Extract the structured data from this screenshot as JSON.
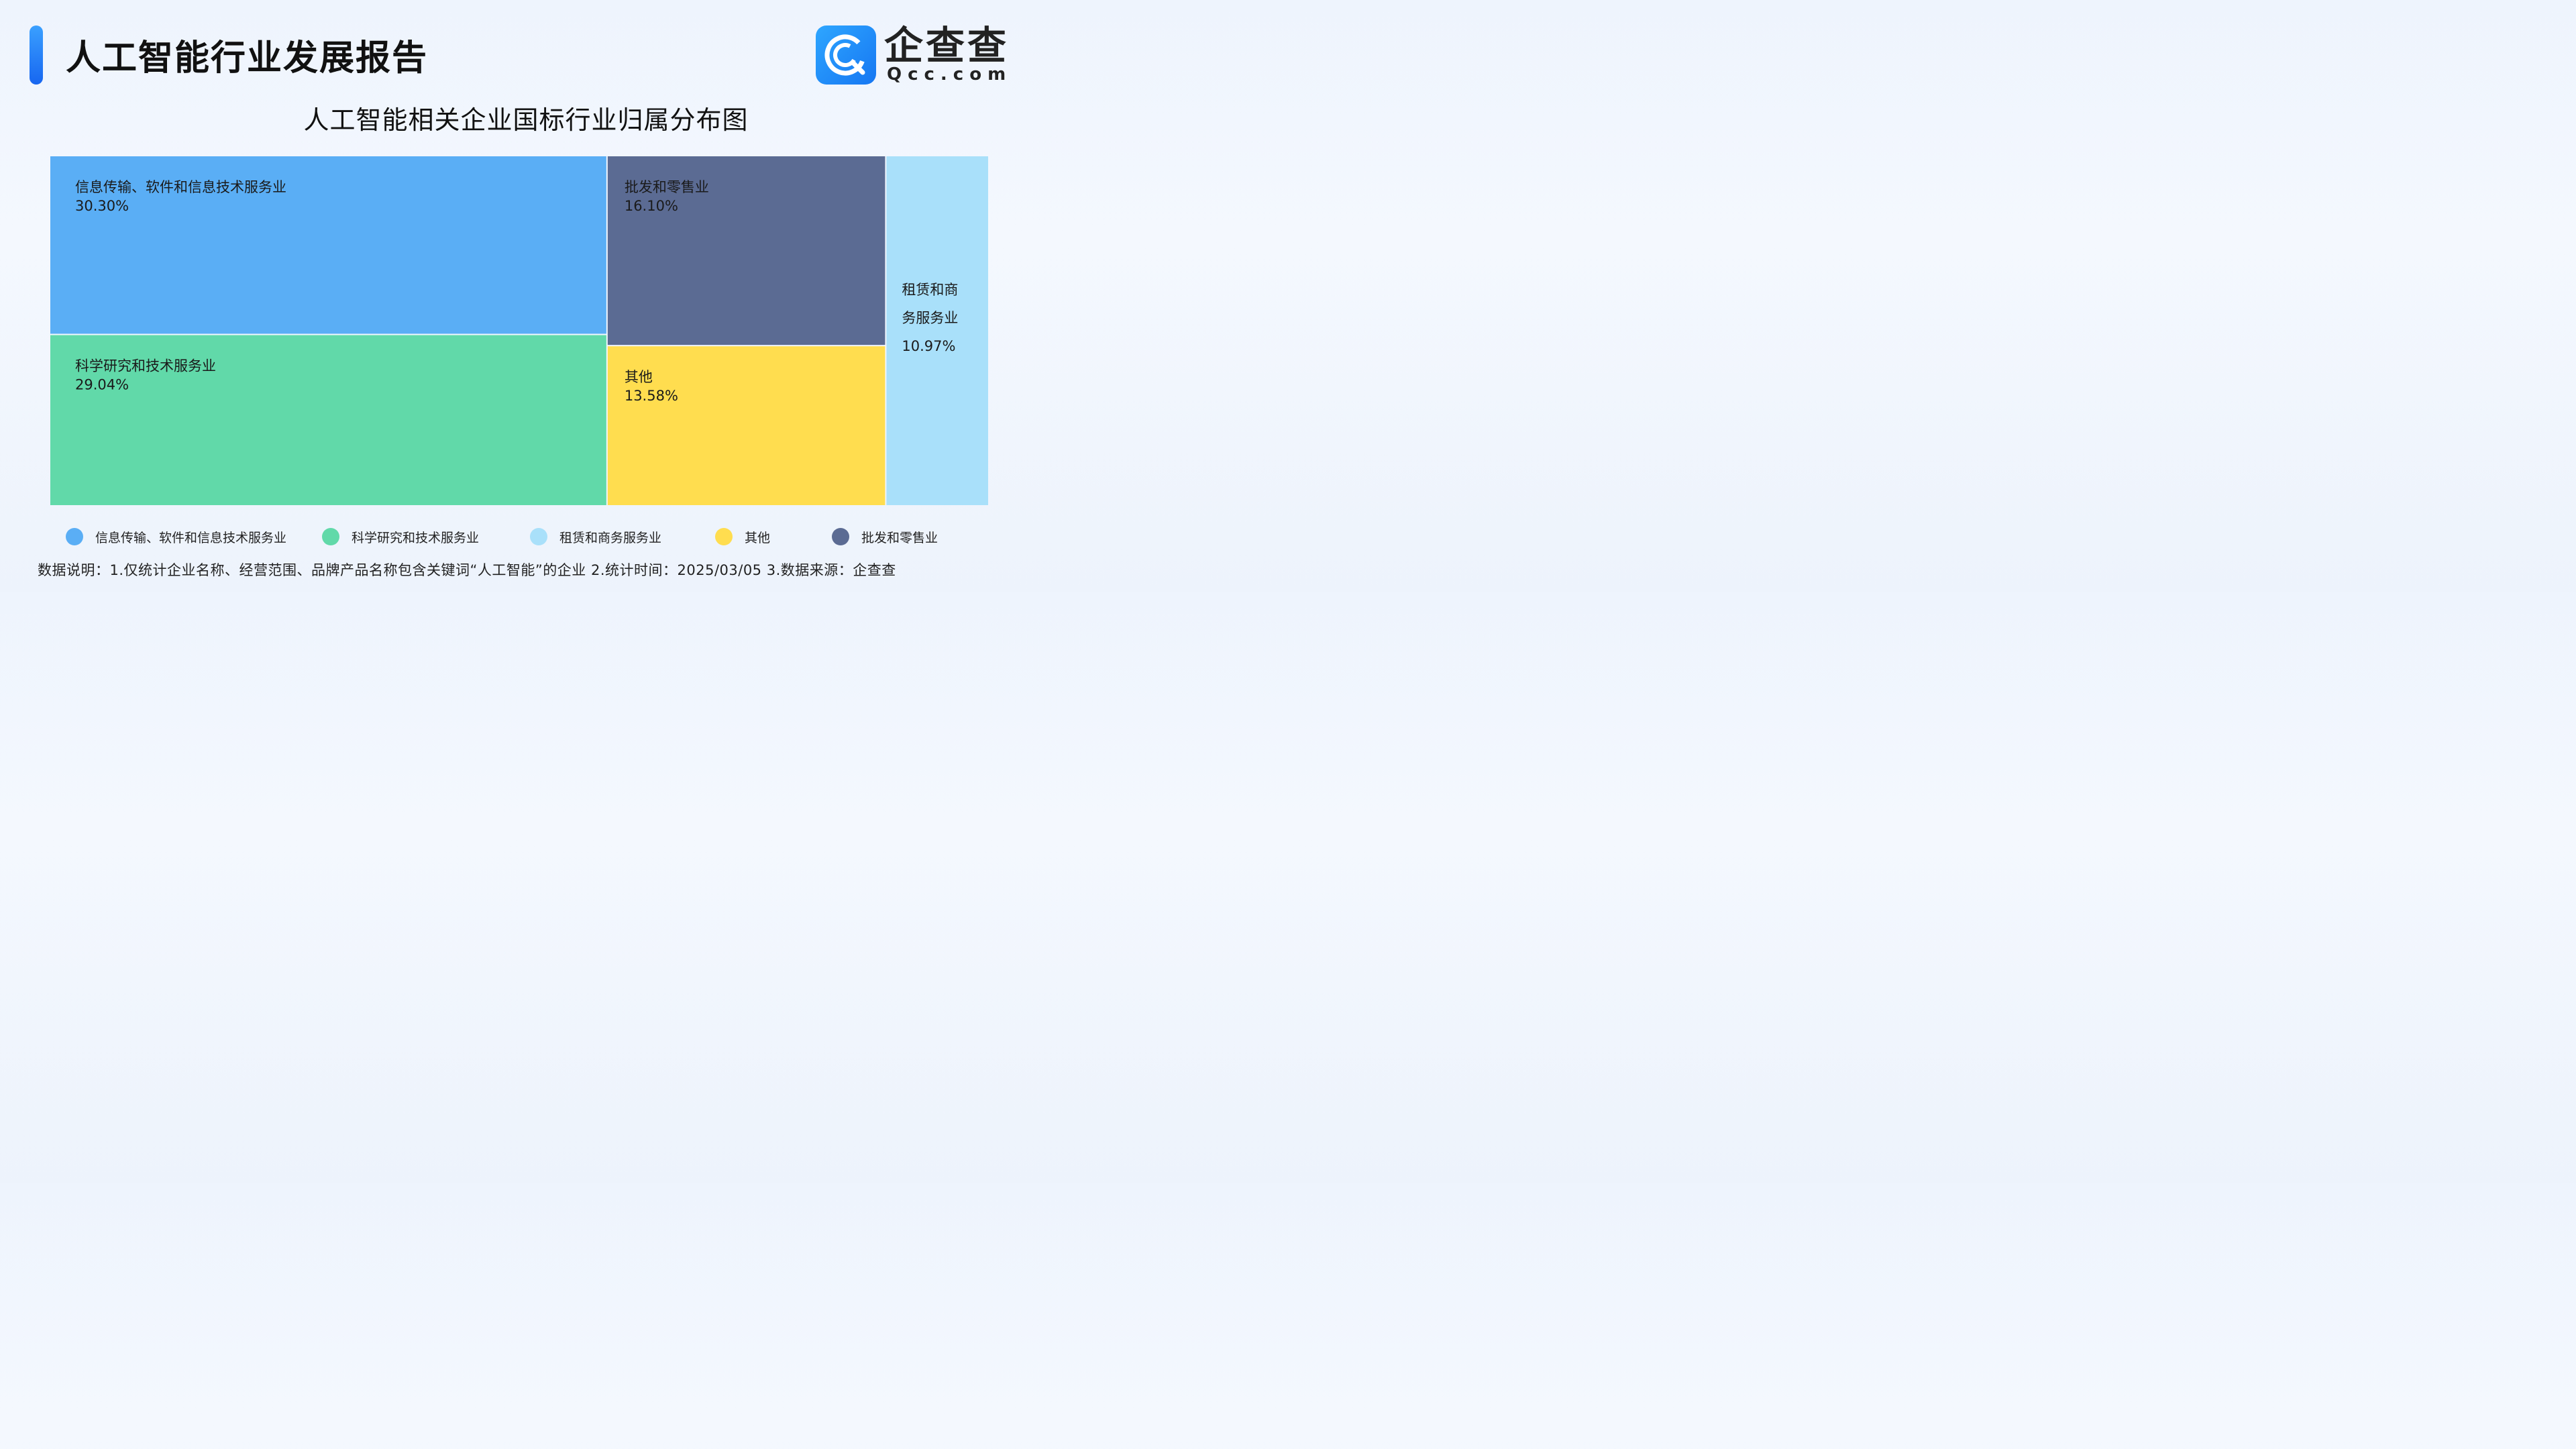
{
  "header": {
    "title": "人工智能行业发展报告",
    "logo_cn": "企查查",
    "logo_en": "Qcc.com"
  },
  "chart_data": {
    "type": "treemap",
    "title": "人工智能相关企业国标行业归属分布图",
    "items": [
      {
        "name": "信息传输、软件和信息技术服务业",
        "value": 30.3,
        "label": "30.30%",
        "color": "#5aaef5"
      },
      {
        "name": "科学研究和技术服务业",
        "value": 29.04,
        "label": "29.04%",
        "color": "#61d9a9"
      },
      {
        "name": "批发和零售业",
        "value": 16.1,
        "label": "16.10%",
        "color": "#5b6b93"
      },
      {
        "name": "其他",
        "value": 13.58,
        "label": "13.58%",
        "color": "#ffdd4f"
      },
      {
        "name": "租赁和商务服务业",
        "name_lines": [
          "租赁和商",
          "务服务业"
        ],
        "value": 10.97,
        "label": "10.97%",
        "color": "#a9e0fa"
      }
    ]
  },
  "legend": [
    {
      "label": "信息传输、软件和信息技术服务业",
      "color": "#5aaef5"
    },
    {
      "label": "科学研究和技术服务业",
      "color": "#61d9a9"
    },
    {
      "label": "租赁和商务服务业",
      "color": "#a9e0fa"
    },
    {
      "label": "其他",
      "color": "#ffdd4f"
    },
    {
      "label": "批发和零售业",
      "color": "#5b6b93"
    }
  ],
  "footnote": "数据说明：1.仅统计企业名称、经营范围、品牌产品名称包含关键词“人工智能”的企业   2.统计时间：2025/03/05    3.数据来源：企查查"
}
